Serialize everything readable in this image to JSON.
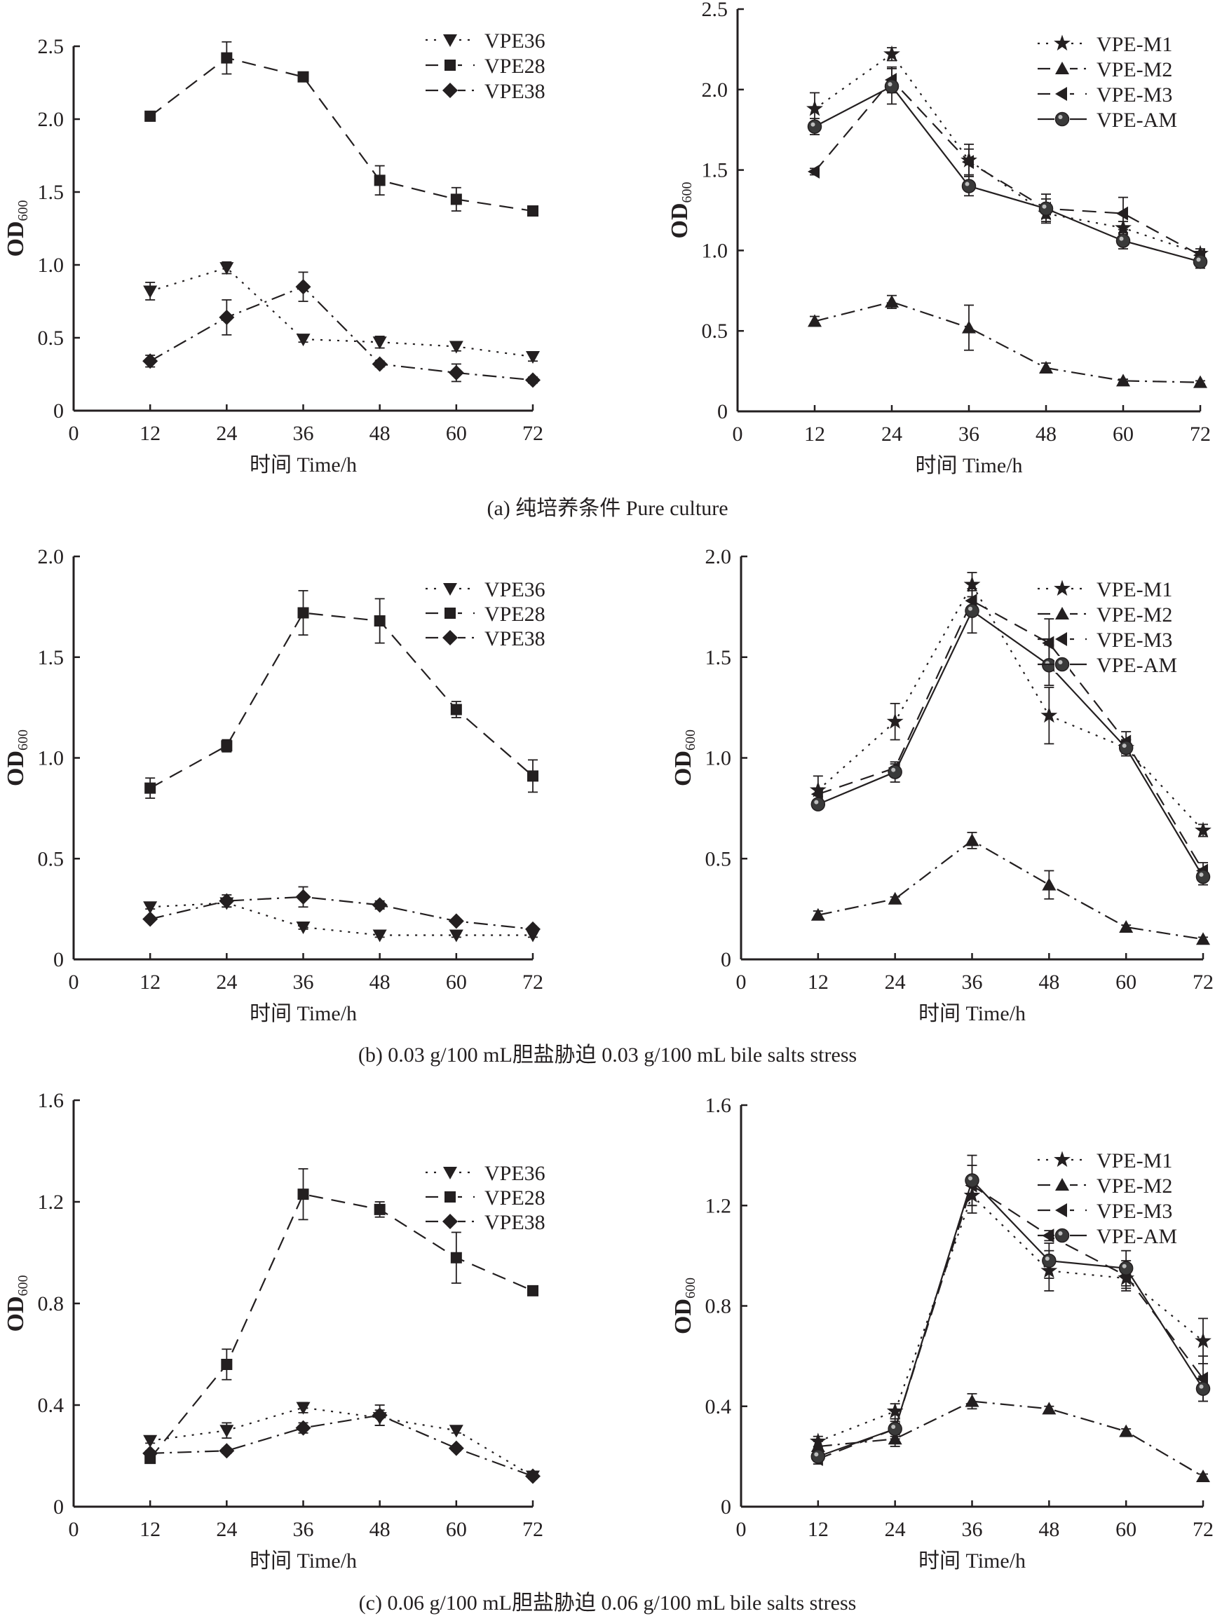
{
  "chart_data": [
    {
      "id": "a-left",
      "type": "line",
      "group_caption": "(a) 纯培养条件 Pure culture",
      "xlabel": "时间 Time/h",
      "ylabel": "OD",
      "ylabel_sub": "600",
      "xlim": [
        0,
        72
      ],
      "ylim": [
        0,
        2.5
      ],
      "xticks": [
        "0",
        "12",
        "24",
        "36",
        "48",
        "60",
        "72"
      ],
      "xtick_values": [
        0,
        12,
        24,
        36,
        48,
        60,
        72
      ],
      "yticks": [
        "0",
        "0.5",
        "1.0",
        "1.5",
        "2.0",
        "2.5"
      ],
      "ytick_values": [
        0,
        0.5,
        1.0,
        1.5,
        2.0,
        2.5
      ],
      "legend": "top-right",
      "x": [
        12,
        24,
        36,
        48,
        60,
        72
      ],
      "series": [
        {
          "name": "VPE36",
          "marker": "triangle-down",
          "line": "dotted",
          "values": [
            0.82,
            0.98,
            0.49,
            0.47,
            0.44,
            0.37
          ],
          "errors": [
            0.06,
            0.04,
            0.02,
            0.04,
            0.03,
            0.03
          ]
        },
        {
          "name": "VPE28",
          "marker": "square",
          "line": "dashed",
          "values": [
            2.02,
            2.42,
            2.29,
            1.58,
            1.45,
            1.37
          ],
          "errors": [
            0.02,
            0.11,
            0.02,
            0.1,
            0.08,
            0.02
          ]
        },
        {
          "name": "VPE38",
          "marker": "diamond",
          "line": "dashdot",
          "values": [
            0.34,
            0.64,
            0.85,
            0.32,
            0.26,
            0.21
          ],
          "errors": [
            0.04,
            0.12,
            0.1,
            0.02,
            0.06,
            0.02
          ]
        }
      ]
    },
    {
      "id": "a-right",
      "type": "line",
      "xlabel": "时间 Time/h",
      "ylabel": "OD",
      "ylabel_sub": "600",
      "xlim": [
        0,
        72
      ],
      "ylim": [
        0,
        2.5
      ],
      "xticks": [
        "0",
        "12",
        "24",
        "36",
        "48",
        "60",
        "72"
      ],
      "xtick_values": [
        0,
        12,
        24,
        36,
        48,
        60,
        72
      ],
      "yticks": [
        "0",
        "0.5",
        "1.0",
        "1.5",
        "2.0",
        "2.5"
      ],
      "ytick_values": [
        0,
        0.5,
        1.0,
        1.5,
        2.0,
        2.5
      ],
      "legend": "top-right",
      "x": [
        12,
        24,
        36,
        48,
        60,
        72
      ],
      "series": [
        {
          "name": "VPE-M1",
          "marker": "star",
          "line": "dotted",
          "values": [
            1.88,
            2.22,
            1.56,
            1.23,
            1.14,
            0.98
          ],
          "errors": [
            0.1,
            0.04,
            0.1,
            0.05,
            0.04,
            0.03
          ]
        },
        {
          "name": "VPE-M2",
          "marker": "triangle-up",
          "line": "dashdot",
          "values": [
            0.56,
            0.68,
            0.52,
            0.27,
            0.19,
            0.18
          ],
          "errors": [
            0.03,
            0.04,
            0.14,
            0.03,
            0.01,
            0.01
          ]
        },
        {
          "name": "VPE-M3",
          "marker": "triangle-left",
          "line": "dashed",
          "values": [
            1.49,
            2.06,
            1.55,
            1.26,
            1.23,
            0.97
          ],
          "errors": [
            0.02,
            0.08,
            0.08,
            0.06,
            0.1,
            0.02
          ]
        },
        {
          "name": "VPE-AM",
          "marker": "circle",
          "line": "solid",
          "values": [
            1.77,
            2.02,
            1.4,
            1.26,
            1.06,
            0.93
          ],
          "errors": [
            0.05,
            0.11,
            0.06,
            0.09,
            0.05,
            0.04
          ]
        }
      ]
    },
    {
      "id": "b-left",
      "type": "line",
      "group_caption": "(b) 0.03 g/100 mL胆盐胁迫 0.03 g/100 mL bile salts stress",
      "xlabel": "时间 Time/h",
      "ylabel": "OD",
      "ylabel_sub": "600",
      "xlim": [
        0,
        72
      ],
      "ylim": [
        0,
        2.0
      ],
      "xticks": [
        "0",
        "12",
        "24",
        "36",
        "48",
        "60",
        "72"
      ],
      "xtick_values": [
        0,
        12,
        24,
        36,
        48,
        60,
        72
      ],
      "yticks": [
        "0",
        "0.5",
        "1.0",
        "1.5",
        "2.0"
      ],
      "ytick_values": [
        0,
        0.5,
        1.0,
        1.5,
        2.0
      ],
      "legend": "top-right",
      "x": [
        12,
        24,
        36,
        48,
        60,
        72
      ],
      "series": [
        {
          "name": "VPE36",
          "marker": "triangle-down",
          "line": "dotted",
          "values": [
            0.26,
            0.28,
            0.16,
            0.12,
            0.12,
            0.12
          ],
          "errors": [
            0.01,
            0.02,
            0.01,
            0.01,
            0.01,
            0.01
          ]
        },
        {
          "name": "VPE28",
          "marker": "square",
          "line": "dashed",
          "values": [
            0.85,
            1.06,
            1.72,
            1.68,
            1.24,
            0.91
          ],
          "errors": [
            0.05,
            0.03,
            0.11,
            0.11,
            0.04,
            0.08
          ]
        },
        {
          "name": "VPE38",
          "marker": "diamond",
          "line": "dashdot",
          "values": [
            0.2,
            0.29,
            0.31,
            0.27,
            0.19,
            0.15
          ],
          "errors": [
            0.01,
            0.03,
            0.05,
            0.02,
            0.01,
            0.01
          ]
        }
      ]
    },
    {
      "id": "b-right",
      "type": "line",
      "xlabel": "时间 Time/h",
      "ylabel": "OD",
      "ylabel_sub": "600",
      "xlim": [
        0,
        72
      ],
      "ylim": [
        0,
        2.0
      ],
      "xticks": [
        "0",
        "12",
        "24",
        "36",
        "48",
        "60",
        "72"
      ],
      "xtick_values": [
        0,
        12,
        24,
        36,
        48,
        60,
        72
      ],
      "yticks": [
        "0",
        "0.5",
        "1.0",
        "1.5",
        "2.0"
      ],
      "ytick_values": [
        0,
        0.5,
        1.0,
        1.5,
        2.0
      ],
      "legend": "top-right",
      "x": [
        12,
        24,
        36,
        48,
        60,
        72
      ],
      "series": [
        {
          "name": "VPE-M1",
          "marker": "star",
          "line": "dotted",
          "values": [
            0.84,
            1.18,
            1.86,
            1.21,
            1.05,
            0.64
          ],
          "errors": [
            0.07,
            0.09,
            0.06,
            0.14,
            0.04,
            0.03
          ]
        },
        {
          "name": "VPE-M2",
          "marker": "triangle-up",
          "line": "dashdot",
          "values": [
            0.22,
            0.3,
            0.59,
            0.37,
            0.16,
            0.1
          ],
          "errors": [
            0.02,
            0.01,
            0.04,
            0.07,
            0.01,
            0.01
          ]
        },
        {
          "name": "VPE-M3",
          "marker": "triangle-left",
          "line": "dashed",
          "values": [
            0.82,
            0.95,
            1.78,
            1.57,
            1.08,
            0.44
          ],
          "errors": [
            0.03,
            0.02,
            0.05,
            0.12,
            0.05,
            0.04
          ]
        },
        {
          "name": "VPE-AM",
          "marker": "circle",
          "line": "solid",
          "values": [
            0.77,
            0.93,
            1.73,
            1.46,
            1.05,
            0.41
          ],
          "errors": [
            0.02,
            0.05,
            0.11,
            0.1,
            0.04,
            0.04
          ]
        }
      ]
    },
    {
      "id": "c-left",
      "type": "line",
      "group_caption": "(c) 0.06 g/100 mL胆盐胁迫 0.06 g/100 mL bile salts stress",
      "xlabel": "时间 Time/h",
      "ylabel": "OD",
      "ylabel_sub": "600",
      "xlim": [
        0,
        72
      ],
      "ylim": [
        0,
        1.6
      ],
      "xticks": [
        "0",
        "12",
        "24",
        "36",
        "48",
        "60",
        "72"
      ],
      "xtick_values": [
        0,
        12,
        24,
        36,
        48,
        60,
        72
      ],
      "yticks": [
        "0",
        "0.4",
        "0.8",
        "1.2",
        "1.6"
      ],
      "ytick_values": [
        0,
        0.4,
        0.8,
        1.2,
        1.6
      ],
      "legend": "top-right",
      "x": [
        12,
        24,
        36,
        48,
        60,
        72
      ],
      "series": [
        {
          "name": "VPE36",
          "marker": "triangle-down",
          "line": "dotted",
          "values": [
            0.26,
            0.3,
            0.39,
            0.35,
            0.3,
            0.12
          ],
          "errors": [
            0.01,
            0.03,
            0.02,
            0.03,
            0.01,
            0.01
          ]
        },
        {
          "name": "VPE28",
          "marker": "square",
          "line": "dashed",
          "values": [
            0.19,
            0.56,
            1.23,
            1.17,
            0.98,
            0.85
          ],
          "errors": [
            0.01,
            0.06,
            0.1,
            0.03,
            0.1,
            0.01
          ]
        },
        {
          "name": "VPE38",
          "marker": "diamond",
          "line": "dashdot",
          "values": [
            0.21,
            0.22,
            0.31,
            0.36,
            0.23,
            0.12
          ],
          "errors": [
            0.01,
            0.01,
            0.02,
            0.04,
            0.01,
            0.01
          ]
        }
      ]
    },
    {
      "id": "c-right",
      "type": "line",
      "xlabel": "时间 Time/h",
      "ylabel": "OD",
      "ylabel_sub": "600",
      "xlim": [
        0,
        72
      ],
      "ylim": [
        0,
        1.6
      ],
      "xticks": [
        "0",
        "12",
        "24",
        "36",
        "48",
        "60",
        "72"
      ],
      "xtick_values": [
        0,
        12,
        24,
        36,
        48,
        60,
        72
      ],
      "yticks": [
        "0",
        "0.4",
        "0.8",
        "1.2",
        "1.6"
      ],
      "ytick_values": [
        0,
        0.4,
        0.8,
        1.2,
        1.6
      ],
      "legend": "top-right",
      "x": [
        12,
        24,
        36,
        48,
        60,
        72
      ],
      "series": [
        {
          "name": "VPE-M1",
          "marker": "star",
          "line": "dotted",
          "values": [
            0.26,
            0.38,
            1.24,
            0.94,
            0.91,
            0.66
          ],
          "errors": [
            0.02,
            0.03,
            0.07,
            0.08,
            0.04,
            0.09
          ]
        },
        {
          "name": "VPE-M2",
          "marker": "triangle-up",
          "line": "dashdot",
          "values": [
            0.24,
            0.27,
            0.42,
            0.39,
            0.3,
            0.12
          ],
          "errors": [
            0.02,
            0.03,
            0.03,
            0.01,
            0.01,
            0.01
          ]
        },
        {
          "name": "VPE-M3",
          "marker": "triangle-left",
          "line": "dashed",
          "values": [
            0.19,
            0.31,
            1.28,
            1.08,
            0.92,
            0.51
          ],
          "errors": [
            0.02,
            0.04,
            0.08,
            0.02,
            0.06,
            0.09
          ]
        },
        {
          "name": "VPE-AM",
          "marker": "circle",
          "line": "solid",
          "values": [
            0.2,
            0.31,
            1.3,
            0.98,
            0.95,
            0.47
          ],
          "errors": [
            0.02,
            0.03,
            0.1,
            0.07,
            0.07,
            0.05
          ]
        }
      ]
    }
  ],
  "captions": [
    "(a) 纯培养条件 Pure culture",
    "(b) 0.03 g/100 mL胆盐胁迫 0.03 g/100 mL bile salts stress",
    "(c) 0.06 g/100 mL胆盐胁迫 0.06 g/100 mL bile salts stress"
  ],
  "colors": {
    "ink": "#231f20",
    "background": "#ffffff"
  }
}
